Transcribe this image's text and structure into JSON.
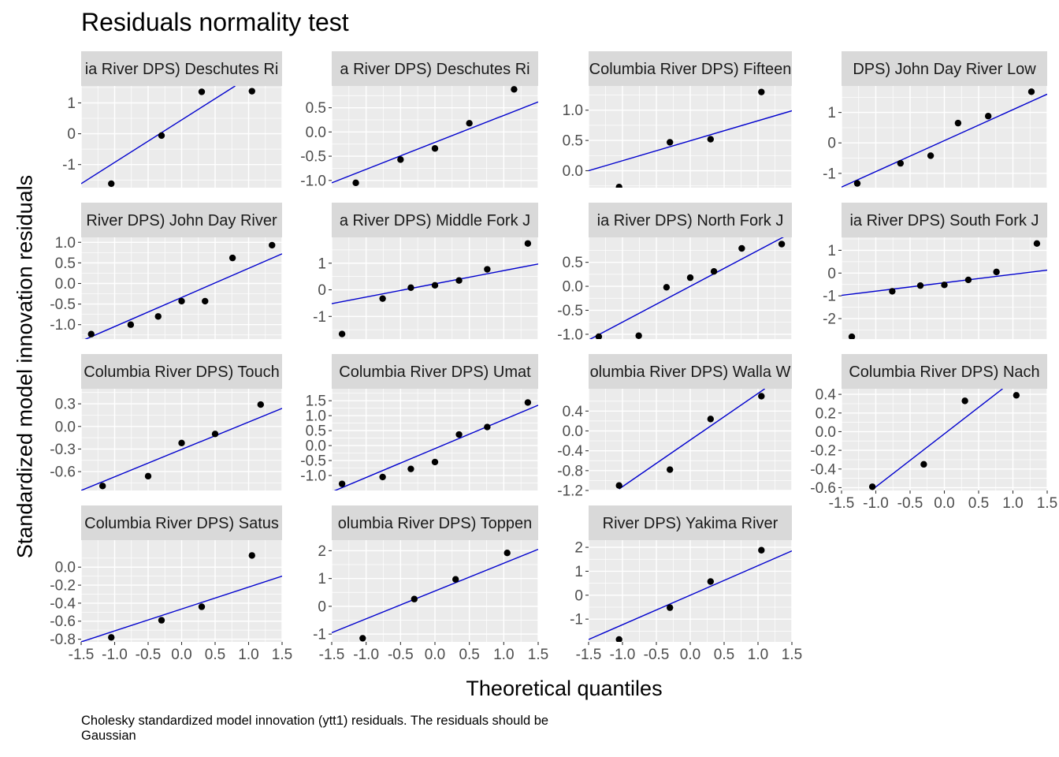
{
  "title": "Residuals normality test",
  "xlabel": "Theoretical quantiles",
  "ylabel": "Standardized model innovation residuals",
  "caption": "Cholesky standardized model innovation (ytt1) residuals. The residuals should be Gaussian",
  "colors": {
    "panel_bg": "#EBEBEB",
    "strip_bg": "#D9D9D9",
    "grid": "#FFFFFF",
    "points": "#000000",
    "line": "#0000CD",
    "axis_text": "#4D4D4D"
  },
  "chart_data": {
    "type": "scatter",
    "layout": "facet_wrap 4 columns, free y scales",
    "xlim": [
      -1.5,
      1.5
    ],
    "x_ticks": [
      -1.5,
      -1.0,
      -0.5,
      0.0,
      0.5,
      1.0,
      1.5
    ],
    "x_tick_labels": [
      "-1.5",
      "-1.0",
      "-0.5",
      "0.0",
      "0.5",
      "1.0",
      "1.5"
    ],
    "panels": [
      {
        "strip": "ia River DPS) Deschutes Ri",
        "ylim": [
          -1.75,
          1.55
        ],
        "y_ticks": [
          -1,
          0,
          1
        ],
        "y_tick_labels": [
          "-1",
          "0",
          "1"
        ],
        "points": [
          [
            -1.05,
            -1.62
          ],
          [
            -0.3,
            -0.06
          ],
          [
            0.3,
            1.36
          ],
          [
            1.05,
            1.38
          ]
        ],
        "line": [
          [
            -1.5,
            -1.62
          ],
          [
            0.8,
            1.55
          ]
        ]
      },
      {
        "strip": "a River DPS) Deschutes Ri",
        "ylim": [
          -1.15,
          0.95
        ],
        "y_ticks": [
          -1.0,
          -0.5,
          0.0,
          0.5
        ],
        "y_tick_labels": [
          "-1.0",
          "-0.5",
          "0.0",
          "0.5"
        ],
        "points": [
          [
            -1.15,
            -1.05
          ],
          [
            -0.5,
            -0.57
          ],
          [
            0.0,
            -0.34
          ],
          [
            0.5,
            0.18
          ],
          [
            1.15,
            0.88
          ]
        ],
        "line": [
          [
            -1.5,
            -1.05
          ],
          [
            1.5,
            0.62
          ]
        ]
      },
      {
        "strip": "Columbia River DPS) Fifteen",
        "ylim": [
          -0.28,
          1.4
        ],
        "y_ticks": [
          0.0,
          0.5,
          1.0
        ],
        "y_tick_labels": [
          "0.0",
          "0.5",
          "1.0"
        ],
        "points": [
          [
            -1.05,
            -0.27
          ],
          [
            -0.3,
            0.47
          ],
          [
            0.3,
            0.52
          ],
          [
            1.05,
            1.3
          ]
        ],
        "line": [
          [
            -1.5,
            0.0
          ],
          [
            1.5,
            0.99
          ]
        ]
      },
      {
        "strip": "DPS) John Day River Low",
        "ylim": [
          -1.47,
          1.87
        ],
        "y_ticks": [
          -1,
          0,
          1
        ],
        "y_tick_labels": [
          "-1",
          "0",
          "1"
        ],
        "points": [
          [
            -1.27,
            -1.33
          ],
          [
            -0.64,
            -0.67
          ],
          [
            -0.2,
            -0.42
          ],
          [
            0.2,
            0.65
          ],
          [
            0.64,
            0.88
          ],
          [
            1.27,
            1.68
          ]
        ],
        "line": [
          [
            -1.5,
            -1.45
          ],
          [
            1.5,
            1.6
          ]
        ]
      },
      {
        "strip": "River DPS) John Day River",
        "ylim": [
          -1.35,
          1.12
        ],
        "y_ticks": [
          -1.0,
          -0.5,
          0.0,
          0.5,
          1.0
        ],
        "y_tick_labels": [
          "-1.0",
          "-0.5",
          "0.0",
          "0.5",
          "1.0"
        ],
        "points": [
          [
            -1.35,
            -1.23
          ],
          [
            -0.76,
            -1.0
          ],
          [
            -0.35,
            -0.8
          ],
          [
            0.0,
            -0.43
          ],
          [
            0.35,
            -0.43
          ],
          [
            0.76,
            0.62
          ],
          [
            1.35,
            0.93
          ]
        ],
        "line": [
          [
            -1.5,
            -1.4
          ],
          [
            1.5,
            0.72
          ]
        ]
      },
      {
        "strip": "a River DPS) Middle Fork J",
        "ylim": [
          -1.85,
          1.97
        ],
        "y_ticks": [
          -1,
          0,
          1
        ],
        "y_tick_labels": [
          "-1",
          "0",
          "1"
        ],
        "points": [
          [
            -1.35,
            -1.66
          ],
          [
            -0.76,
            -0.33
          ],
          [
            -0.35,
            0.08
          ],
          [
            0.0,
            0.17
          ],
          [
            0.35,
            0.35
          ],
          [
            0.76,
            0.77
          ],
          [
            1.35,
            1.74
          ]
        ],
        "line": [
          [
            -1.5,
            -0.52
          ],
          [
            1.5,
            0.97
          ]
        ]
      },
      {
        "strip": "ia River DPS) North Fork J",
        "ylim": [
          -1.1,
          1.02
        ],
        "y_ticks": [
          -1.0,
          -0.5,
          0.0,
          0.5
        ],
        "y_tick_labels": [
          "-1.0",
          "-0.5",
          "0.0",
          "0.5"
        ],
        "points": [
          [
            -1.35,
            -1.05
          ],
          [
            -0.76,
            -1.03
          ],
          [
            -0.35,
            -0.02
          ],
          [
            0.0,
            0.18
          ],
          [
            0.35,
            0.31
          ],
          [
            0.76,
            0.79
          ],
          [
            1.35,
            0.88
          ]
        ],
        "line": [
          [
            -1.5,
            -1.12
          ],
          [
            1.5,
            1.12
          ]
        ]
      },
      {
        "strip": "ia River DPS) South Fork J",
        "ylim": [
          -2.9,
          1.57
        ],
        "y_ticks": [
          -2,
          -1,
          0,
          1
        ],
        "y_tick_labels": [
          "-2",
          "-1",
          "0",
          "1"
        ],
        "points": [
          [
            -1.35,
            -2.8
          ],
          [
            -0.76,
            -0.8
          ],
          [
            -0.35,
            -0.55
          ],
          [
            0.0,
            -0.52
          ],
          [
            0.35,
            -0.3
          ],
          [
            0.76,
            0.05
          ],
          [
            1.35,
            1.3
          ]
        ],
        "line": [
          [
            -1.5,
            -0.98
          ],
          [
            1.5,
            0.13
          ]
        ]
      },
      {
        "strip": "Columbia River DPS) Touch",
        "ylim": [
          -0.85,
          0.5
        ],
        "y_ticks": [
          -0.6,
          -0.3,
          0.0,
          0.3
        ],
        "y_tick_labels": [
          "-0.6",
          "-0.3",
          "0.0",
          "0.3"
        ],
        "points": [
          [
            -1.18,
            -0.79
          ],
          [
            -0.5,
            -0.66
          ],
          [
            0.0,
            -0.22
          ],
          [
            0.5,
            -0.1
          ],
          [
            1.18,
            0.29
          ]
        ],
        "line": [
          [
            -1.5,
            -0.85
          ],
          [
            1.5,
            0.24
          ]
        ]
      },
      {
        "strip": "Columbia River DPS) Umat",
        "ylim": [
          -1.5,
          1.9
        ],
        "y_ticks": [
          -1.0,
          -0.5,
          0.0,
          0.5,
          1.0,
          1.5
        ],
        "y_tick_labels": [
          "-1.0",
          "-0.5",
          "0.0",
          "0.5",
          "1.0",
          "1.5"
        ],
        "points": [
          [
            -1.35,
            -1.28
          ],
          [
            -0.76,
            -1.05
          ],
          [
            -0.35,
            -0.78
          ],
          [
            0.0,
            -0.55
          ],
          [
            0.35,
            0.37
          ],
          [
            0.76,
            0.62
          ],
          [
            1.35,
            1.44
          ]
        ],
        "line": [
          [
            -1.5,
            -1.55
          ],
          [
            1.5,
            1.35
          ]
        ]
      },
      {
        "strip": "olumbia River DPS) Walla W",
        "ylim": [
          -1.2,
          0.85
        ],
        "y_ticks": [
          -1.2,
          -0.8,
          -0.4,
          0.0,
          0.4
        ],
        "y_tick_labels": [
          "-1.2",
          "-0.8",
          "-0.4",
          "0.0",
          "0.4"
        ],
        "points": [
          [
            -1.05,
            -1.1
          ],
          [
            -0.3,
            -0.78
          ],
          [
            0.3,
            0.24
          ],
          [
            1.05,
            0.7
          ]
        ],
        "line": [
          [
            -1.05,
            -1.17
          ],
          [
            1.1,
            0.85
          ]
        ]
      },
      {
        "strip": "Columbia River DPS) Nach",
        "ylim": [
          -0.63,
          0.46
        ],
        "y_ticks": [
          -0.6,
          -0.4,
          -0.2,
          0.0,
          0.2,
          0.4
        ],
        "y_tick_labels": [
          "-0.6",
          "-0.4",
          "-0.2",
          "0.0",
          "0.2",
          "0.4"
        ],
        "points": [
          [
            -1.05,
            -0.59
          ],
          [
            -0.3,
            -0.35
          ],
          [
            0.3,
            0.33
          ],
          [
            1.05,
            0.39
          ]
        ],
        "line": [
          [
            -1.05,
            -0.62
          ],
          [
            0.85,
            0.46
          ]
        ]
      },
      {
        "strip": "Columbia River DPS) Satus",
        "ylim": [
          -0.83,
          0.3
        ],
        "y_ticks": [
          -0.8,
          -0.6,
          -0.4,
          -0.2,
          0.0
        ],
        "y_tick_labels": [
          "-0.8",
          "-0.6",
          "-0.4",
          "-0.2",
          "0.0"
        ],
        "points": [
          [
            -1.05,
            -0.78
          ],
          [
            -0.3,
            -0.59
          ],
          [
            0.3,
            -0.44
          ],
          [
            1.05,
            0.13
          ]
        ],
        "line": [
          [
            -1.5,
            -0.83
          ],
          [
            1.5,
            -0.1
          ]
        ]
      },
      {
        "strip": "olumbia River DPS) Toppen",
        "ylim": [
          -1.28,
          2.38
        ],
        "y_ticks": [
          -1,
          0,
          1,
          2
        ],
        "y_tick_labels": [
          "-1",
          "0",
          "1",
          "2"
        ],
        "points": [
          [
            -1.05,
            -1.15
          ],
          [
            -0.3,
            0.26
          ],
          [
            0.3,
            0.97
          ],
          [
            1.05,
            1.92
          ]
        ],
        "line": [
          [
            -1.5,
            -0.95
          ],
          [
            1.5,
            2.05
          ]
        ]
      },
      {
        "strip": "River DPS) Yakima River",
        "ylim": [
          -1.95,
          2.3
        ],
        "y_ticks": [
          -1,
          0,
          1,
          2
        ],
        "y_tick_labels": [
          "-1",
          "0",
          "1",
          "2"
        ],
        "points": [
          [
            -1.05,
            -1.85
          ],
          [
            -0.3,
            -0.52
          ],
          [
            0.3,
            0.57
          ],
          [
            1.05,
            1.88
          ]
        ],
        "line": [
          [
            -1.5,
            -1.85
          ],
          [
            1.5,
            1.85
          ]
        ]
      }
    ]
  }
}
